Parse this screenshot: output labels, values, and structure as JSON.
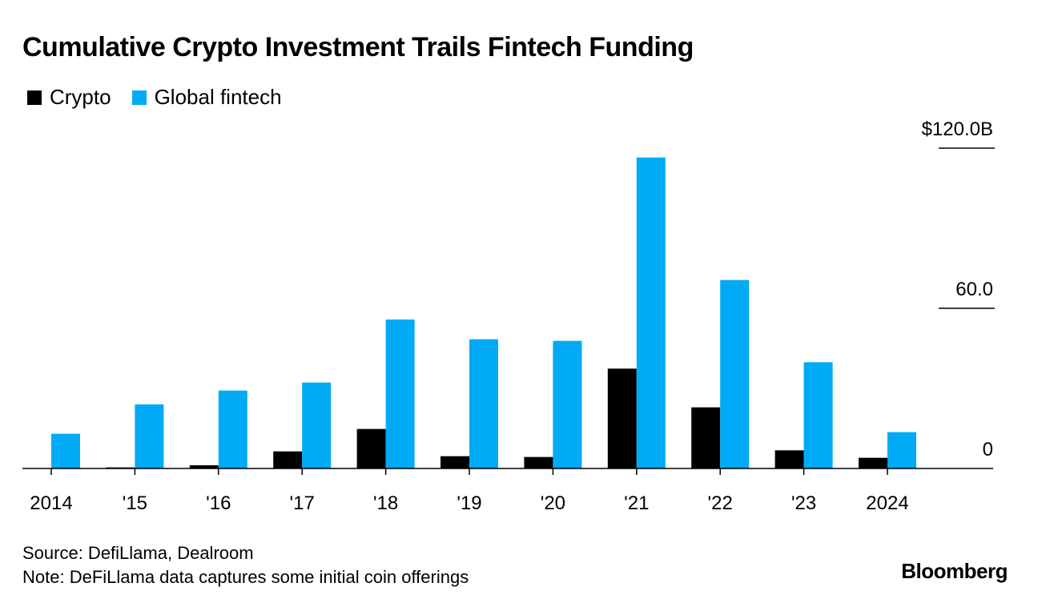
{
  "chart_data": {
    "type": "bar",
    "title": "Cumulative Crypto Investment Trails Fintech Funding",
    "categories": [
      "2014",
      "'15",
      "'16",
      "'17",
      "'18",
      "'19",
      "'20",
      "'21",
      "'22",
      "'23",
      "2024"
    ],
    "series": [
      {
        "name": "Crypto",
        "color": "#000000",
        "values": [
          0.1,
          0.4,
          1.2,
          6.4,
          14.8,
          4.6,
          4.3,
          37.4,
          22.9,
          6.8,
          4.0
        ]
      },
      {
        "name": "Global fintech",
        "color": "#00aaf5",
        "values": [
          13.0,
          24.0,
          29.2,
          32.2,
          55.8,
          48.4,
          47.8,
          116.5,
          70.6,
          39.8,
          13.6
        ]
      }
    ],
    "y_ticks": [
      {
        "value": 120,
        "label": "$120.0B"
      },
      {
        "value": 60,
        "label": "60.0"
      },
      {
        "value": 0,
        "label": "0"
      }
    ],
    "ylim": [
      0,
      120
    ],
    "grid": false,
    "legend_position": "top-left",
    "source": "Source: DefiLlama, Dealroom",
    "note": "Note: DeFiLlama data captures some initial coin offerings",
    "brand": "Bloomberg"
  }
}
